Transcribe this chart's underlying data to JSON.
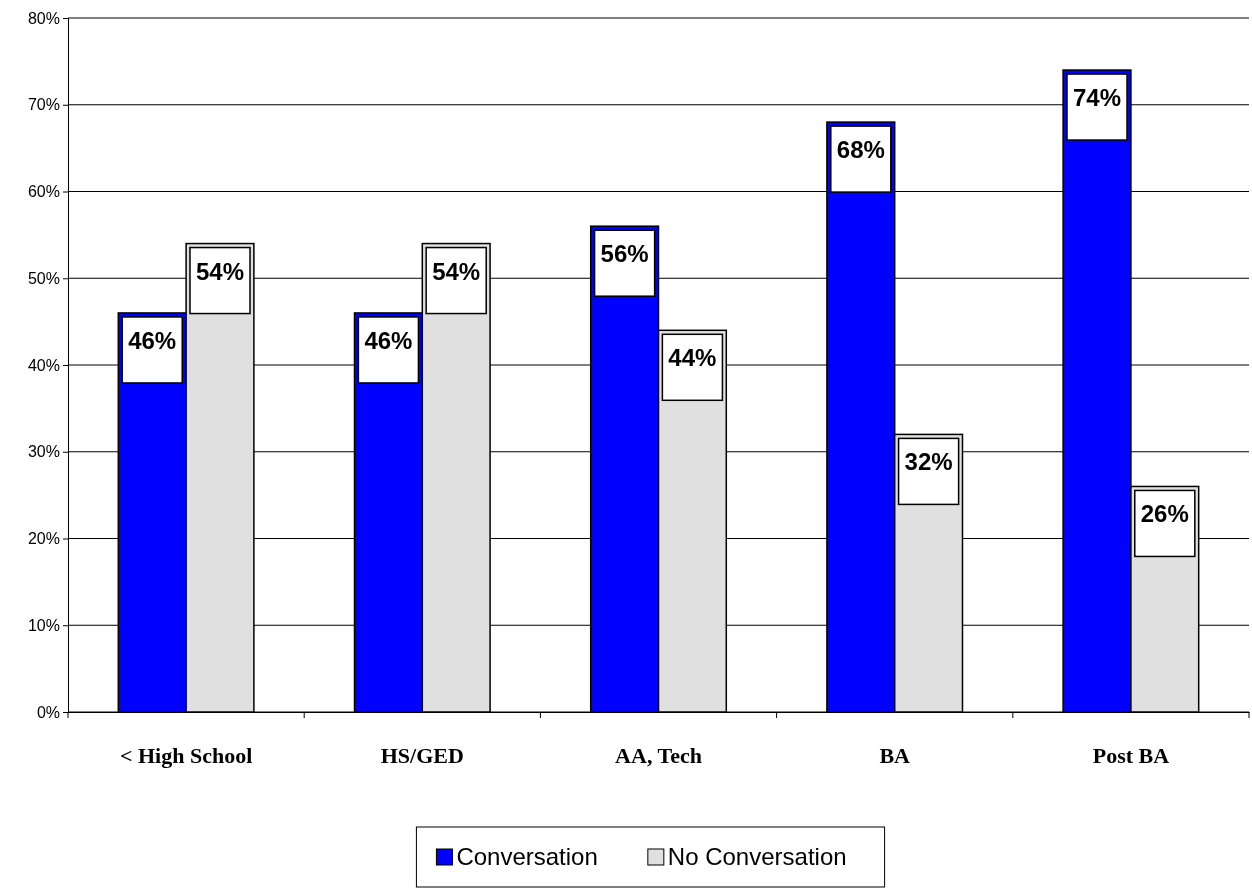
{
  "chart_data": {
    "type": "bar",
    "categories": [
      "< High School",
      "HS/GED",
      "AA, Tech",
      "BA",
      "Post BA"
    ],
    "series": [
      {
        "name": "Conversation",
        "color": "#0000ff",
        "values": [
          46,
          46,
          56,
          68,
          74
        ],
        "value_labels": [
          "46%",
          "46%",
          "56%",
          "68%",
          "74%"
        ]
      },
      {
        "name": "No Conversation",
        "color": "#e0e0e0",
        "values": [
          54,
          54,
          44,
          32,
          26
        ],
        "value_labels": [
          "54%",
          "54%",
          "44%",
          "32%",
          "26%"
        ]
      }
    ],
    "ylim": [
      0,
      80
    ],
    "yticks": [
      {
        "value": 0,
        "label": "0%"
      },
      {
        "value": 10,
        "label": "10%"
      },
      {
        "value": 20,
        "label": "20%"
      },
      {
        "value": 30,
        "label": "30%"
      },
      {
        "value": 40,
        "label": "40%"
      },
      {
        "value": 50,
        "label": "50%"
      },
      {
        "value": 60,
        "label": "60%"
      },
      {
        "value": 70,
        "label": "70%"
      },
      {
        "value": 80,
        "label": "80%"
      }
    ],
    "grid": "y",
    "legend": "bottom"
  }
}
